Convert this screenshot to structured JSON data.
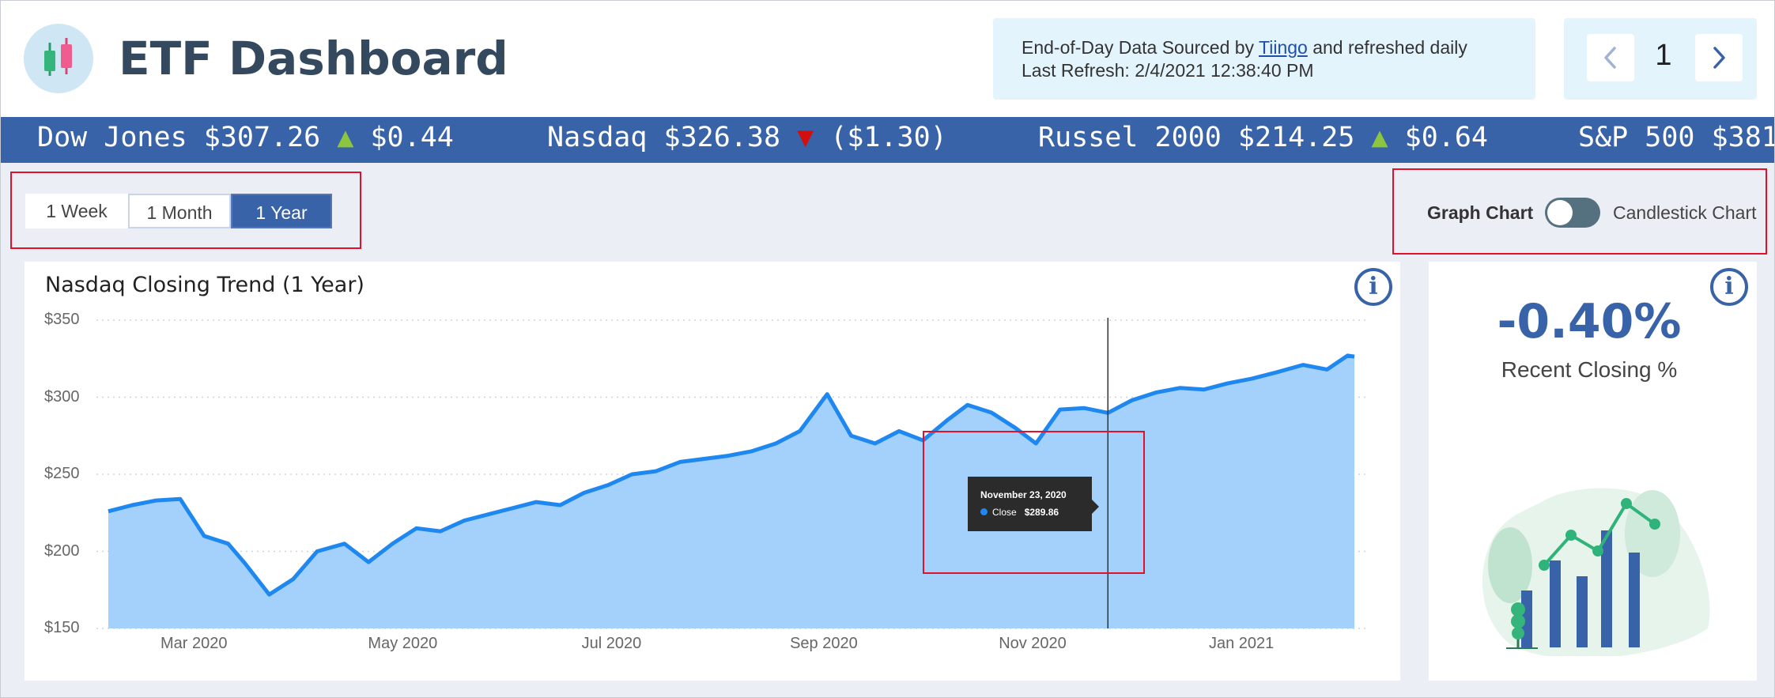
{
  "header": {
    "title": "ETF Dashboard",
    "info_prefix": "End-of-Day Data Sourced by",
    "info_link": "Tiingo",
    "info_suffix": "and refreshed daily",
    "refresh_label": "Last Refresh:",
    "refresh_value": "2/4/2021 12:38:40 PM",
    "page_number": "1"
  },
  "ticker": [
    {
      "name": "Dow Jones",
      "price": "$307.26",
      "direction": "up",
      "arrow": "▲",
      "change": "$0.44"
    },
    {
      "name": "Nasdaq",
      "price": "$326.38",
      "direction": "down",
      "arrow": "▼",
      "change": "($1.30)"
    },
    {
      "name": "Russel 2000",
      "price": "$214.25",
      "direction": "up",
      "arrow": "▲",
      "change": "$0.64"
    },
    {
      "name": "S&P 500",
      "price": "$381"
    }
  ],
  "colors": {
    "up": "#8cc63f",
    "down": "#d20f0f",
    "accent": "#3963a8",
    "line": "#1e88f0",
    "area": "#a3d1fc"
  },
  "range_buttons": {
    "options": [
      "1 Week",
      "1 Month",
      "1 Year"
    ],
    "selected": "1 Year"
  },
  "chart_toggle": {
    "left_label": "Graph Chart",
    "right_label": "Candlestick Chart",
    "state": "Graph Chart"
  },
  "chart": {
    "title": "Nasdaq Closing Trend (1 Year)",
    "tooltip": {
      "date": "November 23, 2020",
      "series": "Close",
      "value": "$289.86"
    }
  },
  "kpi": {
    "value": "-0.40%",
    "label": "Recent Closing %"
  },
  "chart_data": {
    "type": "area",
    "title": "Nasdaq Closing Trend (1 Year)",
    "xlabel": "",
    "ylabel": "",
    "ylim": [
      150,
      350
    ],
    "y_ticks": [
      "$150",
      "$200",
      "$250",
      "$300",
      "$350"
    ],
    "x_ticks": [
      "Mar 2020",
      "May 2020",
      "Jul 2020",
      "Sep 2020",
      "Nov 2020",
      "Jan 2021"
    ],
    "grid": true,
    "series": [
      {
        "name": "Close",
        "x": [
          "2020-02-05",
          "2020-02-12",
          "2020-02-19",
          "2020-02-26",
          "2020-03-04",
          "2020-03-11",
          "2020-03-16",
          "2020-03-23",
          "2020-03-30",
          "2020-04-06",
          "2020-04-14",
          "2020-04-21",
          "2020-04-28",
          "2020-05-05",
          "2020-05-12",
          "2020-05-19",
          "2020-05-26",
          "2020-06-02",
          "2020-06-09",
          "2020-06-16",
          "2020-06-23",
          "2020-06-30",
          "2020-07-07",
          "2020-07-14",
          "2020-07-21",
          "2020-07-28",
          "2020-08-04",
          "2020-08-11",
          "2020-08-18",
          "2020-08-25",
          "2020-09-02",
          "2020-09-09",
          "2020-09-16",
          "2020-09-23",
          "2020-09-30",
          "2020-10-07",
          "2020-10-13",
          "2020-10-20",
          "2020-10-27",
          "2020-11-02",
          "2020-11-09",
          "2020-11-16",
          "2020-11-23",
          "2020-11-30",
          "2020-12-07",
          "2020-12-14",
          "2020-12-21",
          "2020-12-28",
          "2021-01-04",
          "2021-01-11",
          "2021-01-19",
          "2021-01-26",
          "2021-02-01",
          "2021-02-03"
        ],
        "values": [
          226,
          230,
          233,
          234,
          210,
          205,
          192,
          172,
          182,
          200,
          205,
          193,
          205,
          215,
          213,
          220,
          224,
          228,
          232,
          230,
          238,
          243,
          250,
          252,
          258,
          260,
          262,
          265,
          270,
          278,
          302,
          275,
          270,
          278,
          272,
          285,
          295,
          290,
          280,
          270,
          292,
          293,
          289.86,
          298,
          303,
          306,
          305,
          309,
          312,
          316,
          321,
          318,
          327,
          326.38
        ]
      }
    ]
  }
}
